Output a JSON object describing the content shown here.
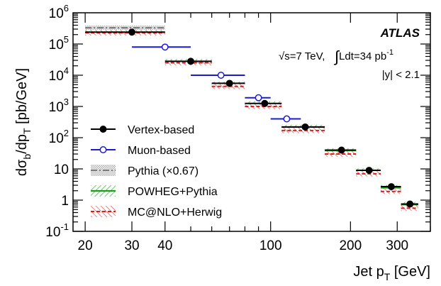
{
  "chart_data": {
    "type": "scatter",
    "xscale": "log",
    "yscale": "log",
    "xlim": [
      18,
      400
    ],
    "ylim": [
      0.1,
      1000000
    ],
    "xlabel_main": "Jet p",
    "xlabel_sub": "T",
    "xlabel_unit": " [GeV]",
    "ylabel_main": "dσ",
    "ylabel_sub1": "b",
    "ylabel_mid": "/dp",
    "ylabel_sub2": "T",
    "ylabel_unit": " [pb/GeV]",
    "xticks": [
      {
        "value": 20,
        "label": "20"
      },
      {
        "value": 30,
        "label": "30"
      },
      {
        "value": 40,
        "label": "40"
      },
      {
        "value": 100,
        "label": "100"
      },
      {
        "value": 200,
        "label": "200"
      },
      {
        "value": 300,
        "label": "300"
      }
    ],
    "yticks": [
      {
        "value": 0.1,
        "base": "10",
        "exp": "-1"
      },
      {
        "value": 1,
        "base": "1",
        "exp": ""
      },
      {
        "value": 10,
        "base": "10",
        "exp": ""
      },
      {
        "value": 100,
        "base": "10",
        "exp": "2"
      },
      {
        "value": 1000,
        "base": "10",
        "exp": "3"
      },
      {
        "value": 10000,
        "base": "10",
        "exp": "4"
      },
      {
        "value": 100000,
        "base": "10",
        "exp": "5"
      },
      {
        "value": 1000000,
        "base": "10",
        "exp": "6"
      }
    ],
    "annotations": {
      "experiment": "ATLAS",
      "energy": "√s=7 TeV,",
      "lumi_prefix": "∫",
      "lumi": "Ldt=34 pb",
      "lumi_exp": "-1",
      "rapidity": "|y| < 2.1"
    },
    "series": [
      {
        "name": "Vertex-based",
        "color": "#000000",
        "marker": "filled-circle",
        "points": [
          {
            "xlo": 20,
            "xhi": 40,
            "x": 30,
            "y": 240000
          },
          {
            "xlo": 40,
            "xhi": 60,
            "x": 50,
            "y": 28000
          },
          {
            "xlo": 60,
            "xhi": 80,
            "x": 70,
            "y": 5500
          },
          {
            "xlo": 80,
            "xhi": 110,
            "x": 95,
            "y": 1250
          },
          {
            "xlo": 110,
            "xhi": 160,
            "x": 135,
            "y": 220
          },
          {
            "xlo": 160,
            "xhi": 210,
            "x": 185,
            "y": 40
          },
          {
            "xlo": 210,
            "xhi": 260,
            "x": 235,
            "y": 9
          },
          {
            "xlo": 260,
            "xhi": 310,
            "x": 285,
            "y": 2.7
          },
          {
            "xlo": 310,
            "xhi": 360,
            "x": 335,
            "y": 0.75
          }
        ]
      },
      {
        "name": "Muon-based",
        "color": "#1a1ad8",
        "marker": "open-circle",
        "points": [
          {
            "xlo": 30,
            "xhi": 50,
            "x": 40,
            "y": 80000
          },
          {
            "xlo": 50,
            "xhi": 80,
            "x": 65,
            "y": 10000
          },
          {
            "xlo": 80,
            "xhi": 100,
            "x": 90,
            "y": 1900
          },
          {
            "xlo": 100,
            "xhi": 130,
            "x": 115,
            "y": 400
          }
        ]
      }
    ],
    "bands": [
      {
        "name": "Pythia (×0.67)",
        "color": "#6e6e6e",
        "style": "dashdot",
        "bins": [
          {
            "xlo": 20,
            "xhi": 40,
            "y": 330000
          },
          {
            "xlo": 40,
            "xhi": 60,
            "y": 28000
          },
          {
            "xlo": 60,
            "xhi": 80,
            "y": 5000
          },
          {
            "xlo": 80,
            "xhi": 110,
            "y": 1250
          },
          {
            "xlo": 110,
            "xhi": 160,
            "y": 220
          },
          {
            "xlo": 160,
            "xhi": 210,
            "y": 38
          },
          {
            "xlo": 210,
            "xhi": 260,
            "y": 9
          },
          {
            "xlo": 260,
            "xhi": 310,
            "y": 2.6
          },
          {
            "xlo": 310,
            "xhi": 360,
            "y": 0.7
          }
        ]
      },
      {
        "name": "POWHEG+Pythia",
        "color": "#19a019",
        "style": "solid",
        "bins": [
          {
            "xlo": 20,
            "xhi": 40,
            "y": 235000
          },
          {
            "xlo": 40,
            "xhi": 60,
            "y": 27000
          },
          {
            "xlo": 60,
            "xhi": 80,
            "y": 5100
          },
          {
            "xlo": 80,
            "xhi": 110,
            "y": 1200
          },
          {
            "xlo": 110,
            "xhi": 160,
            "y": 210
          },
          {
            "xlo": 160,
            "xhi": 210,
            "y": 37
          },
          {
            "xlo": 210,
            "xhi": 260,
            "y": 8.5
          },
          {
            "xlo": 260,
            "xhi": 310,
            "y": 2.5
          },
          {
            "xlo": 310,
            "xhi": 360,
            "y": 0.72
          }
        ]
      },
      {
        "name": "MC@NLO+Herwig",
        "color": "#d82020",
        "style": "dashed",
        "bins": [
          {
            "xlo": 20,
            "xhi": 40,
            "y": 228000
          },
          {
            "xlo": 40,
            "xhi": 60,
            "y": 25000
          },
          {
            "xlo": 60,
            "xhi": 80,
            "y": 4400
          },
          {
            "xlo": 80,
            "xhi": 110,
            "y": 1000
          },
          {
            "xlo": 110,
            "xhi": 160,
            "y": 170
          },
          {
            "xlo": 160,
            "xhi": 210,
            "y": 30
          },
          {
            "xlo": 210,
            "xhi": 260,
            "y": 7
          },
          {
            "xlo": 260,
            "xhi": 310,
            "y": 1.9
          },
          {
            "xlo": 310,
            "xhi": 360,
            "y": 0.55
          }
        ]
      }
    ],
    "legend": {
      "placement": "bottom-left",
      "entries": [
        "Vertex-based",
        "Muon-based",
        "Pythia (×0.67)",
        "POWHEG+Pythia",
        "MC@NLO+Herwig"
      ]
    }
  }
}
